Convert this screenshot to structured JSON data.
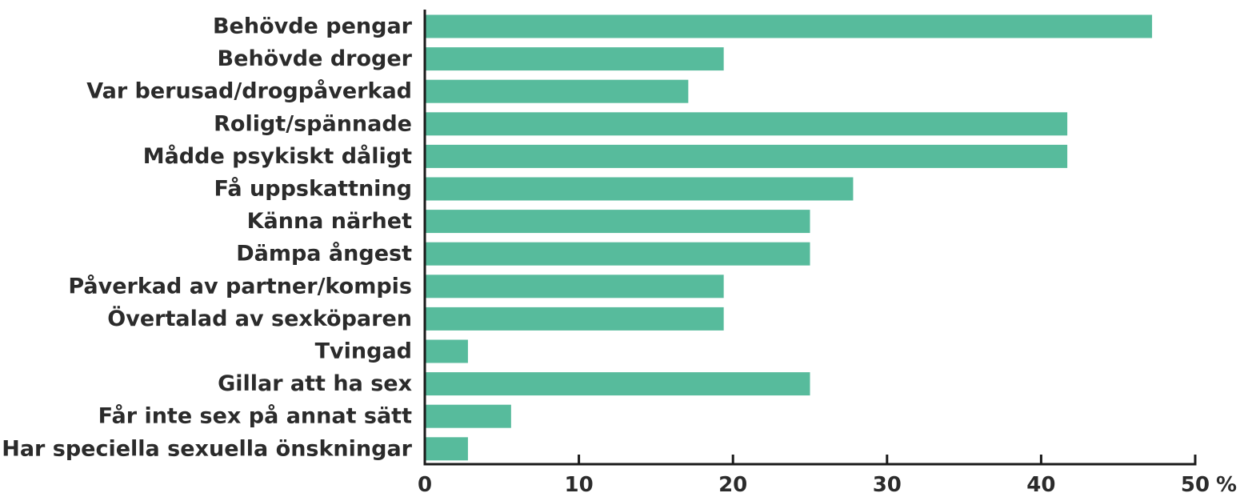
{
  "chart_data": {
    "type": "bar",
    "orientation": "horizontal",
    "categories": [
      "Behövde pengar",
      "Behövde droger",
      "Var berusad/drogpåverkad",
      "Roligt/spännade",
      "Mådde psykiskt dåligt",
      "Få uppskattning",
      "Känna närhet",
      "Dämpa ångest",
      "Påverkad av partner/kompis",
      "Övertalad av sexköparen",
      "Tvingad",
      "Gillar att ha sex",
      "Får inte sex på annat sätt",
      "Har speciella sexuella önskningar"
    ],
    "values": [
      47.2,
      19.4,
      17.1,
      41.7,
      41.7,
      27.8,
      25.0,
      25.0,
      19.4,
      19.4,
      2.8,
      25.0,
      5.6,
      2.8
    ],
    "xlim": [
      0,
      50
    ],
    "xticks": [
      "0",
      "10",
      "20",
      "30",
      "40",
      "50"
    ],
    "xticks_values": [
      0,
      10,
      20,
      30,
      40,
      50
    ],
    "unit_label": "%",
    "title": "",
    "xlabel": "",
    "ylabel": "",
    "grid": false,
    "legend": "none",
    "bar_color": "#57bb9c",
    "axis_color": "#1a1a1a"
  }
}
